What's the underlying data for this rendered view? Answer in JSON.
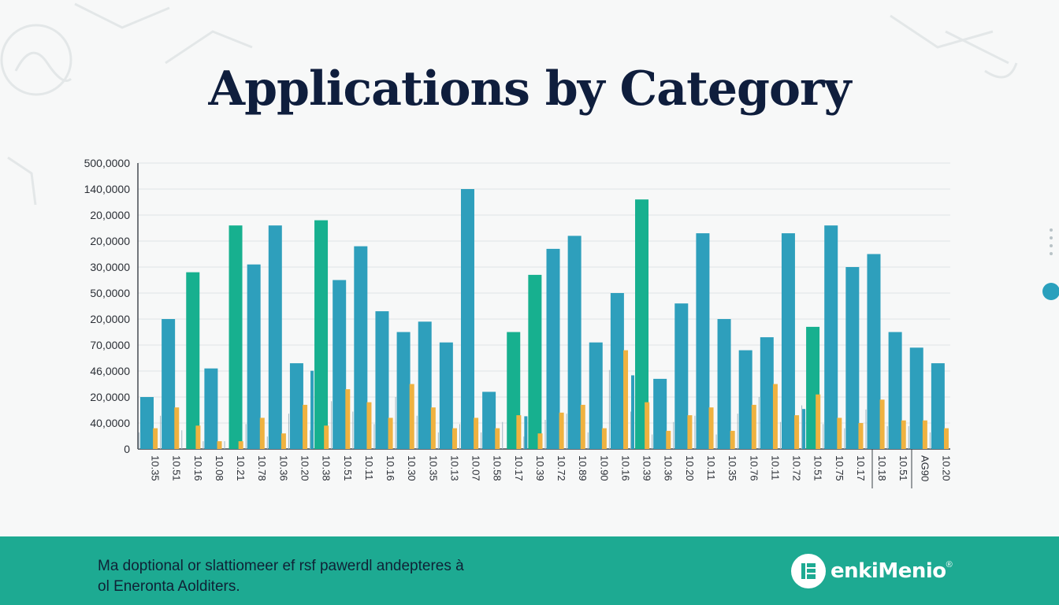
{
  "chart_data": {
    "type": "bar",
    "title": "Applications by Category",
    "y_tick_labels": [
      "0",
      "40,0000",
      "20,0000",
      "46,0000",
      "70,0000",
      "20,0000",
      "50,0000",
      "30,0000",
      "20,0000",
      "20,0000",
      "140,0000",
      "500,0000"
    ],
    "categories": [
      "10.35",
      "10.51",
      "10.16",
      "10.08",
      "10.21",
      "10.78",
      "10.36",
      "10.20",
      "10.38",
      "10.51",
      "10.11",
      "10.16",
      "10.30",
      "10.35",
      "10.13",
      "10.07",
      "10.58",
      "10.17",
      "10.39",
      "10.72",
      "10.89",
      "10.90",
      "10.16",
      "10.39",
      "10.36",
      "10.20",
      "10.11",
      "10.35",
      "10.76",
      "10.11",
      "10.72",
      "10.51",
      "10.75",
      "10.17",
      "10.18",
      "10.51",
      "AG90",
      "10.20"
    ],
    "ylim": [
      0,
      11
    ],
    "series": [
      {
        "color": "#2e9fbc",
        "values": [
          2.0,
          5.0,
          7.0,
          3.1,
          8.7,
          7.1,
          8.6,
          3.3,
          8.6,
          6.5,
          7.8,
          5.3,
          4.5,
          4.9,
          4.1,
          10.0,
          2.2,
          5.2,
          3.6,
          7.7,
          8.2,
          4.1,
          6.0,
          8.1,
          2.7,
          5.6,
          8.3,
          5.0,
          3.8,
          4.3,
          8.3,
          4.4,
          8.6,
          7.0,
          7.5,
          4.5,
          3.9,
          3.3
        ]
      },
      {
        "color": "#17b08f",
        "values": [
          0,
          0,
          6.8,
          0,
          8.6,
          0,
          0,
          0,
          8.8,
          0,
          0,
          0,
          0,
          0,
          0,
          0,
          0,
          4.5,
          6.7,
          0,
          0,
          0,
          0,
          9.6,
          0,
          0,
          0,
          0,
          0,
          0,
          0,
          4.7,
          0,
          0,
          0,
          0,
          0,
          0
        ]
      },
      {
        "color": "#efb240",
        "values": [
          0.8,
          1.6,
          0.9,
          0.3,
          0.3,
          1.2,
          0.6,
          1.7,
          0.9,
          2.3,
          1.8,
          1.2,
          2.5,
          1.6,
          0.8,
          1.2,
          0.8,
          1.3,
          0.6,
          1.4,
          1.7,
          0.8,
          3.8,
          1.8,
          0.7,
          1.3,
          1.6,
          0.7,
          1.7,
          2.5,
          1.3,
          2.1,
          1.2,
          1.0,
          1.9,
          1.1,
          1.1,
          0.8
        ]
      }
    ],
    "grid": true,
    "legend": "none"
  },
  "footer": {
    "text_line1": "Ma doptional or slattiomeer ef rsf pawerdl andepteres à",
    "text_line2": "ol Eneronta Aolditers.",
    "brand_name": "enkiMenio",
    "brand_mark": "®"
  }
}
